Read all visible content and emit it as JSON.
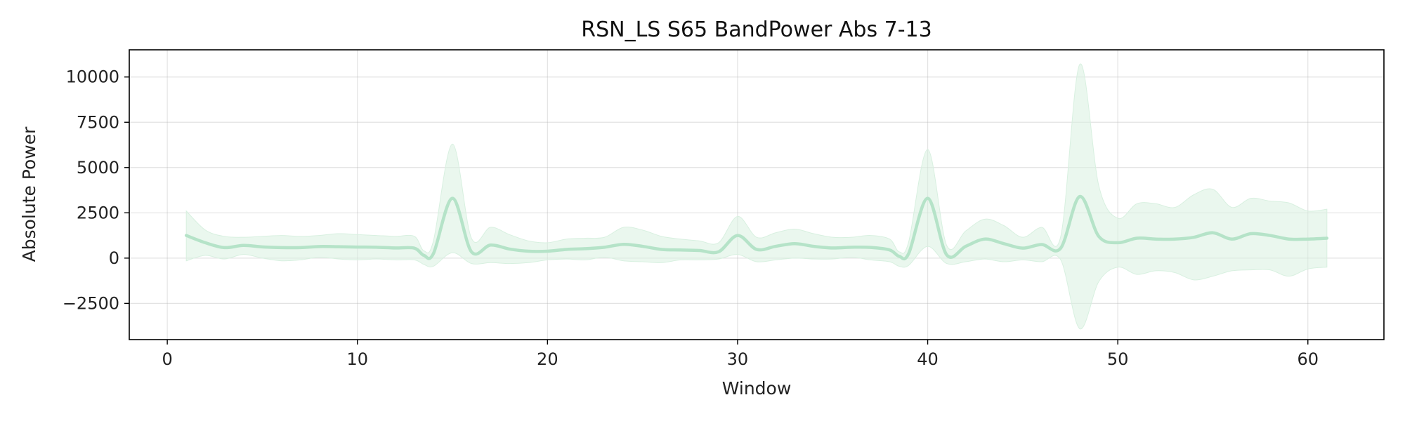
{
  "chart_data": {
    "type": "line",
    "title": "RSN_LS S65 BandPower Abs 7-13",
    "xlabel": "Window",
    "ylabel": "Absolute Power",
    "xlim": [
      -2,
      64
    ],
    "ylim": [
      -4500,
      11500
    ],
    "xticks": [
      0,
      10,
      20,
      30,
      40,
      50,
      60
    ],
    "xtick_labels": [
      "0",
      "10",
      "20",
      "30",
      "40",
      "50",
      "60"
    ],
    "yticks": [
      -2500,
      0,
      2500,
      5000,
      7500,
      10000
    ],
    "ytick_labels": [
      "−2500",
      "0",
      "2500",
      "5000",
      "7500",
      "10000"
    ],
    "grid": true,
    "line_color": "#b5e3c8",
    "band_color": "#d8f0e0",
    "series": [
      {
        "x": [
          1,
          2,
          3,
          4,
          5,
          6,
          7,
          8,
          9,
          10,
          11,
          12,
          13,
          13.5,
          14,
          15,
          16,
          17,
          18,
          19,
          20,
          21,
          22,
          23,
          24,
          25,
          26,
          27,
          28,
          29,
          30,
          31,
          32,
          33,
          34,
          35,
          36,
          37,
          38,
          38.5,
          39,
          40,
          41,
          42,
          43,
          44,
          45,
          46,
          47,
          48,
          49,
          50,
          51,
          52,
          53,
          54,
          55,
          56,
          57,
          58,
          59,
          60,
          61
        ],
        "y": [
          1250,
          850,
          580,
          700,
          620,
          580,
          580,
          640,
          630,
          610,
          600,
          560,
          550,
          150,
          250,
          3300,
          350,
          720,
          500,
          380,
          380,
          480,
          520,
          600,
          760,
          650,
          480,
          450,
          420,
          350,
          1250,
          480,
          650,
          800,
          650,
          560,
          600,
          590,
          450,
          100,
          250,
          3300,
          180,
          650,
          1050,
          800,
          550,
          750,
          550,
          3400,
          1200,
          850,
          1100,
          1050,
          1050,
          1150,
          1400,
          1050,
          1350,
          1250,
          1050,
          1050,
          1100
        ],
        "upper": [
          2600,
          1550,
          1200,
          1150,
          1200,
          1250,
          1200,
          1250,
          1350,
          1300,
          1250,
          1200,
          1200,
          400,
          950,
          6300,
          1100,
          1700,
          1300,
          950,
          850,
          1050,
          1100,
          1150,
          1700,
          1550,
          1200,
          1050,
          950,
          850,
          2300,
          1150,
          1400,
          1600,
          1350,
          1150,
          1150,
          1250,
          1050,
          350,
          900,
          6000,
          700,
          1500,
          2150,
          1800,
          1150,
          1700,
          1200,
          10700,
          4000,
          2200,
          3000,
          3000,
          2800,
          3500,
          3800,
          2800,
          3300,
          3150,
          3050,
          2600,
          2700
        ],
        "lower": [
          -150,
          150,
          -50,
          200,
          0,
          -150,
          -100,
          50,
          -50,
          -100,
          -50,
          -100,
          -100,
          -350,
          -450,
          300,
          -300,
          -250,
          -300,
          -250,
          -100,
          -50,
          -100,
          50,
          -150,
          -200,
          -250,
          -100,
          -100,
          -50,
          200,
          -200,
          -100,
          0,
          -50,
          -50,
          50,
          -100,
          -200,
          -450,
          -400,
          650,
          -300,
          -200,
          -50,
          -200,
          -100,
          -200,
          -100,
          -3900,
          -1300,
          -500,
          -900,
          -700,
          -800,
          -1200,
          -1000,
          -700,
          -650,
          -650,
          -1000,
          -600,
          -500
        ]
      }
    ]
  }
}
